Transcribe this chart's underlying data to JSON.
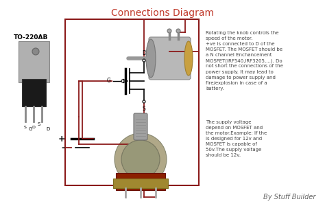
{
  "title": "Connections Diagram",
  "title_color": "#c0392b",
  "title_fontsize": 10,
  "bg_color": "#ffffff",
  "label_to220ab": "TO-220AB",
  "wire_color": "#8b1a1a",
  "text_color": "#444444",
  "text1": "Rotating the knob controls the\nspeed of the motor.\n+ve is connected to D of the\nMOSFET. The MOSFET should be\na N channel Enchancement\nMOSFET(IRF540,IRF3205,...). Do\nnot short the connections of the\npower supply. It may lead to\ndamage to power supply and\nfire/explosion in case of a\nbattery.",
  "text2": "The supply voltage\ndepend on MOSFET and\nthe motor.Example: If the\nis designed for 12v and\nMOSFET is capable of\n50v.The supply voltage\nshould be 12v.",
  "footer": "By Stuff Builder",
  "footer_color": "#666666",
  "footer_fontsize": 7
}
